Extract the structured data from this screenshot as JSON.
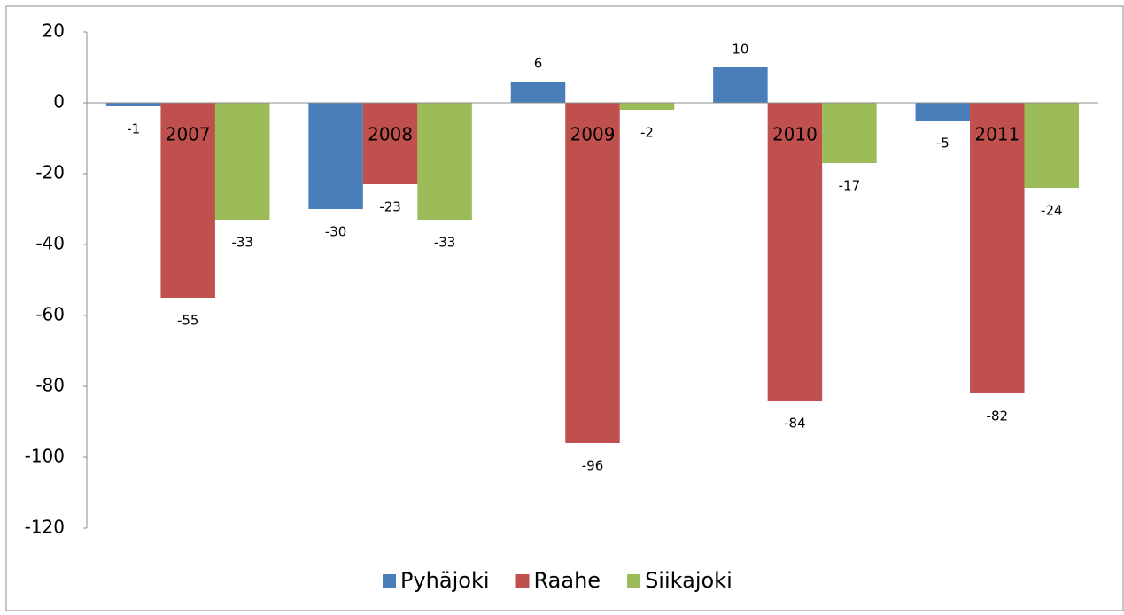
{
  "chart_data": {
    "type": "bar",
    "categories": [
      "2007",
      "2008",
      "2009",
      "2010",
      "2011"
    ],
    "series": [
      {
        "name": "Pyhäjoki",
        "color": "#4a7ebb",
        "values": [
          -1,
          -30,
          6,
          10,
          -5
        ]
      },
      {
        "name": "Raahe",
        "color": "#c0504d",
        "values": [
          -55,
          -23,
          -96,
          -84,
          -82
        ]
      },
      {
        "name": "Siikajoki",
        "color": "#9bbb59",
        "values": [
          -33,
          -33,
          -2,
          -17,
          -24
        ]
      }
    ],
    "ylim": [
      -120,
      20
    ],
    "yticks": [
      -120,
      -100,
      -80,
      -60,
      -40,
      -20,
      0,
      20
    ],
    "grid": false,
    "legend": "bottom"
  }
}
